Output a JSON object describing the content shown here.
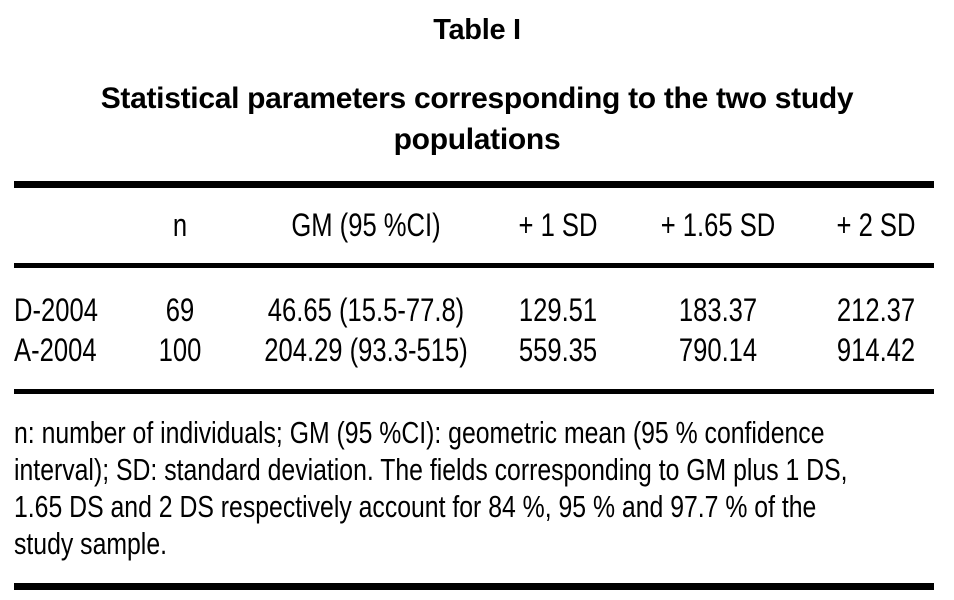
{
  "caption": {
    "table_label": "Table I",
    "title": "Statistical parameters corresponding to the two study populations"
  },
  "table": {
    "headers": [
      "",
      "n",
      "GM (95 %CI)",
      "+ 1 SD",
      "+ 1.65 SD",
      "+ 2 SD"
    ],
    "rows": [
      [
        "D-2004",
        "69",
        "46.65 (15.5-77.8)",
        "129.51",
        "183.37",
        "212.37"
      ],
      [
        "A-2004",
        "100",
        "204.29 (93.3-515)",
        "559.35",
        "790.14",
        "914.42"
      ]
    ]
  },
  "footnote": {
    "lines": [
      "n: number of individuals; GM (95 %CI): geometric mean (95 % confidence",
      "interval); SD: standard deviation. The fields corresponding to GM plus 1 DS,",
      "1.65 DS and 2 DS respectively account for 84 %, 95 % and 97.7 % of the",
      "study sample."
    ]
  },
  "colors": {
    "background": "#ffffff",
    "text": "#000000",
    "rule": "#000000"
  }
}
